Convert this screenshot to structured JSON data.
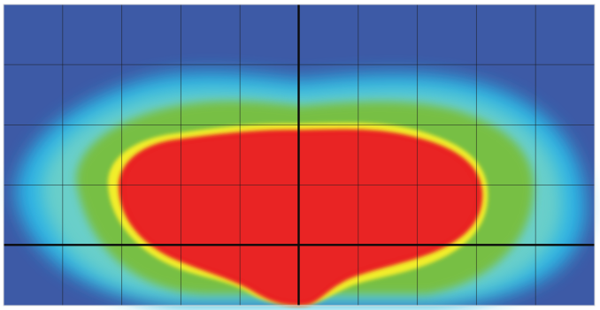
{
  "chart_data": {
    "type": "heatmap",
    "title": "",
    "xlabel": "",
    "ylabel": "",
    "grid": true,
    "grid_columns": 10,
    "grid_rows": 5,
    "colormap": [
      {
        "level": "background",
        "color": "#3d5aa6"
      },
      {
        "level": "low",
        "color": "#2bb7e8"
      },
      {
        "level": "mid-low",
        "color": "#6fd2c7"
      },
      {
        "level": "mid",
        "color": "#78bf43"
      },
      {
        "level": "mid-high",
        "color": "#f4ef2a"
      },
      {
        "level": "high",
        "color": "#e92424"
      }
    ],
    "crosshair": {
      "vertical_line": true,
      "horizontal_line": true
    }
  }
}
